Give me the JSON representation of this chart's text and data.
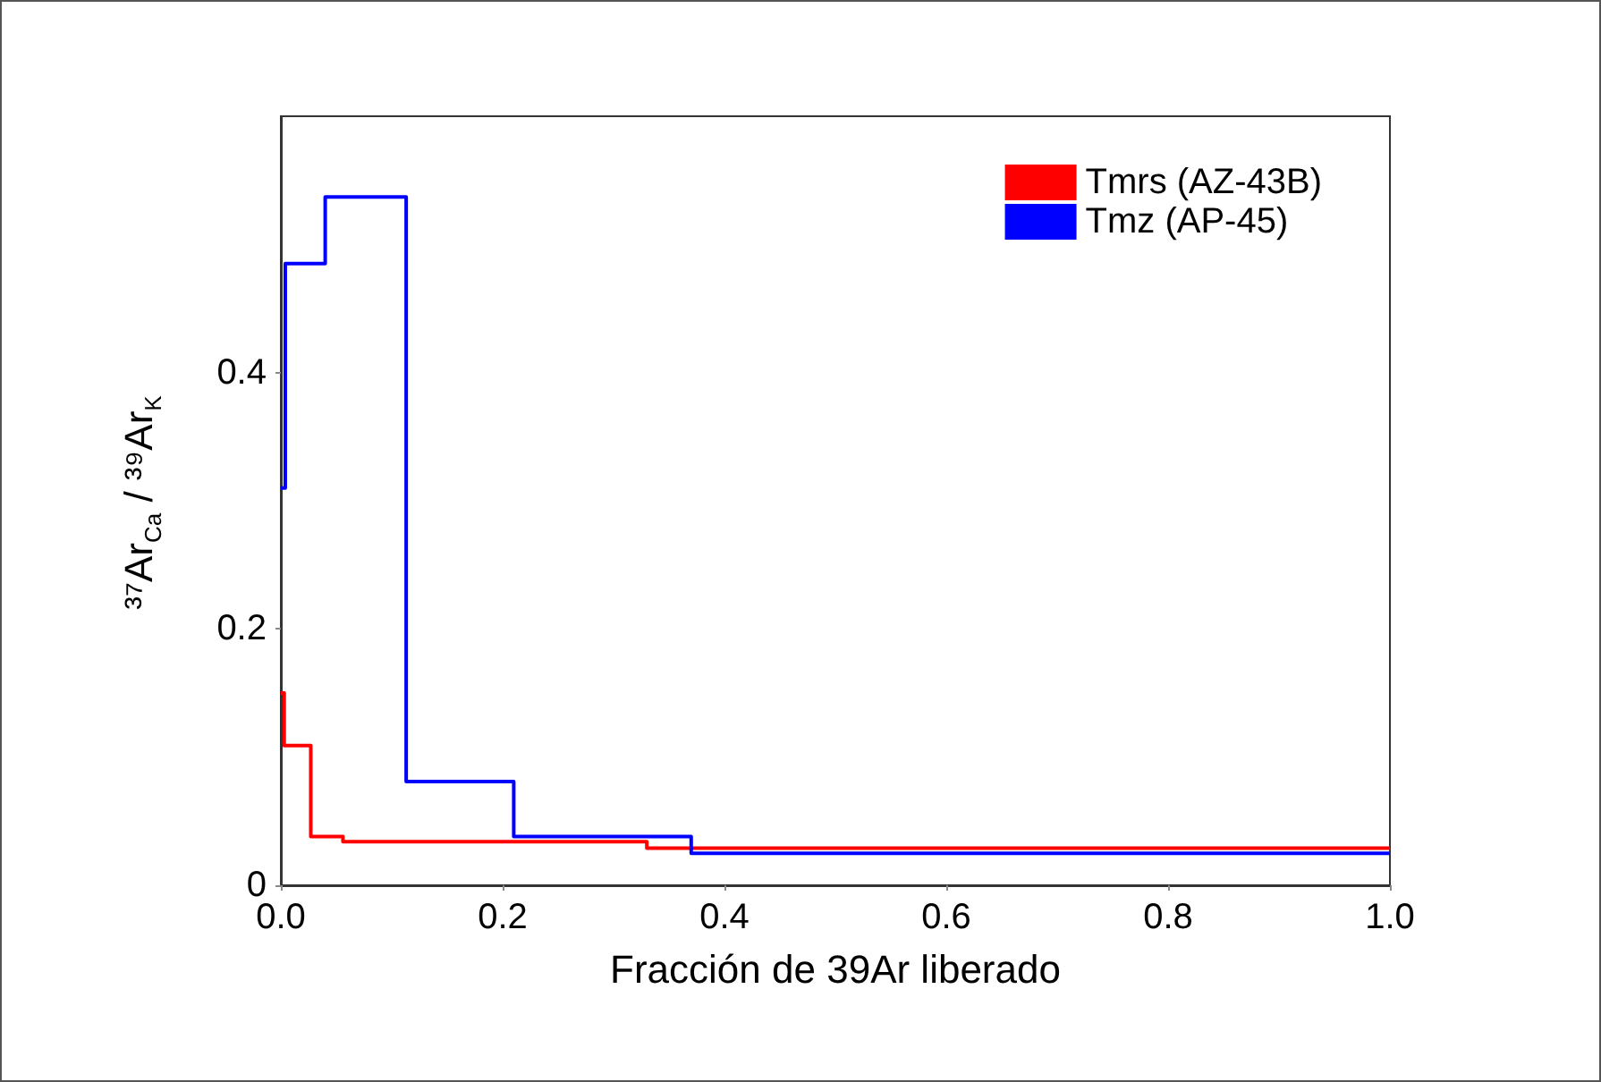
{
  "chart_data": {
    "type": "step",
    "xlabel": "Fracción de 39Ar liberado",
    "ylabel": "³⁷Ar$_{Ca}$ / ³⁹Ar$_{K}$",
    "series": [
      {
        "name": "Tmrs (AZ-43B)",
        "color": "#ff0000",
        "x": [
          0,
          0.003,
          0.027,
          0.056,
          0.33,
          1.0
        ],
        "values": [
          0.15,
          0.109,
          0.038,
          0.034,
          0.029,
          0.029
        ]
      },
      {
        "name": "Tmz (AP-45)",
        "color": "#0000ff",
        "x": [
          0,
          0.004,
          0.04,
          0.113,
          0.21,
          0.37,
          1.0
        ],
        "values": [
          0.31,
          0.485,
          0.537,
          0.081,
          0.038,
          0.025,
          0.025
        ]
      }
    ],
    "xlim": [
      0,
      1.0
    ],
    "xticks": [
      {
        "value": 0,
        "label": "0.0"
      },
      {
        "value": 0.2,
        "label": "0.2"
      },
      {
        "value": 0.4,
        "label": "0.4"
      },
      {
        "value": 0.6,
        "label": "0.6"
      },
      {
        "value": 0.8,
        "label": "0.8"
      },
      {
        "value": 1.0,
        "label": "1.0"
      }
    ],
    "ylim": [
      0,
      0.6
    ],
    "yticks": [
      0,
      0.2,
      0.4
    ],
    "legend": "top right",
    "grid": false,
    "marker": "none"
  }
}
